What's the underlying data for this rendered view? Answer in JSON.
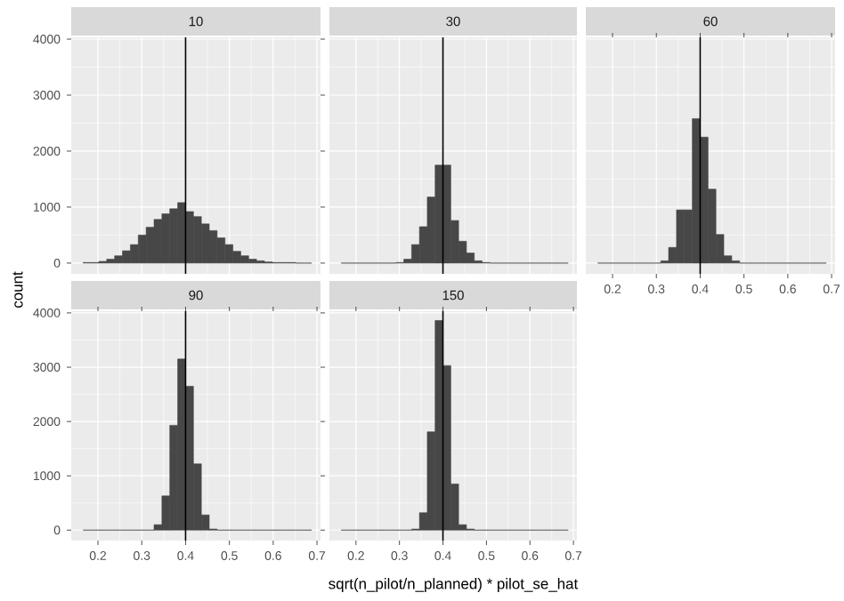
{
  "chart_data": [
    {
      "type": "histogram",
      "title": "10",
      "ylabel": "count",
      "bins": [
        0.166,
        0.184,
        0.202,
        0.22,
        0.238,
        0.256,
        0.274,
        0.292,
        0.31,
        0.328,
        0.346,
        0.364,
        0.382,
        0.4,
        0.418,
        0.436,
        0.454,
        0.472,
        0.49,
        0.508,
        0.526,
        0.544,
        0.562,
        0.58,
        0.598,
        0.616,
        0.634,
        0.652,
        0.67,
        0.688
      ],
      "values": [
        10,
        10,
        30,
        70,
        130,
        220,
        330,
        500,
        640,
        780,
        880,
        970,
        1080,
        920,
        830,
        700,
        580,
        450,
        330,
        210,
        130,
        70,
        40,
        20,
        10,
        10,
        10,
        0,
        0
      ],
      "color": "#474747",
      "xlim": [
        0.139,
        0.708
      ],
      "ylim": [
        -192,
        4032
      ],
      "xticks": [
        0.2,
        0.3,
        0.4,
        0.5,
        0.6,
        0.7
      ],
      "yticks": [
        0,
        1000,
        2000,
        3000,
        4000
      ],
      "tick_labels": "y",
      "grid": true,
      "ref_lines": [
        {
          "axis": "x",
          "value": 0.4,
          "color": "#000000"
        }
      ]
    },
    {
      "type": "histogram",
      "title": "30",
      "bins": [
        0.166,
        0.184,
        0.202,
        0.22,
        0.238,
        0.256,
        0.274,
        0.292,
        0.31,
        0.328,
        0.346,
        0.364,
        0.382,
        0.4,
        0.418,
        0.436,
        0.454,
        0.472,
        0.49,
        0.508,
        0.526,
        0.544,
        0.562,
        0.58,
        0.598,
        0.616,
        0.634,
        0.652,
        0.67,
        0.688
      ],
      "values": [
        0,
        0,
        0,
        0,
        0,
        0,
        0,
        10,
        70,
        330,
        650,
        1180,
        1750,
        1750,
        760,
        390,
        180,
        40,
        10,
        0,
        0,
        0,
        0,
        0,
        0,
        0,
        0,
        0,
        0
      ],
      "color": "#474747",
      "xlim": [
        0.139,
        0.708
      ],
      "ylim": [
        -192,
        4032
      ],
      "xticks": [
        0.2,
        0.3,
        0.4,
        0.5,
        0.6,
        0.7
      ],
      "yticks": [
        0,
        1000,
        2000,
        3000,
        4000
      ],
      "tick_labels": false,
      "grid": true,
      "ref_lines": [
        {
          "axis": "x",
          "value": 0.4,
          "color": "#000000"
        }
      ]
    },
    {
      "type": "histogram",
      "title": "60",
      "bins": [
        0.166,
        0.184,
        0.202,
        0.22,
        0.238,
        0.256,
        0.274,
        0.292,
        0.31,
        0.328,
        0.346,
        0.364,
        0.382,
        0.4,
        0.418,
        0.436,
        0.454,
        0.472,
        0.49,
        0.508,
        0.526,
        0.544,
        0.562,
        0.58,
        0.598,
        0.616,
        0.634,
        0.652,
        0.67,
        0.688
      ],
      "values": [
        0,
        0,
        0,
        0,
        0,
        0,
        0,
        0,
        40,
        280,
        950,
        950,
        2580,
        2250,
        1320,
        510,
        130,
        40,
        0,
        0,
        0,
        0,
        0,
        0,
        0,
        0,
        0,
        0,
        0
      ],
      "color": "#474747",
      "xlim": [
        0.139,
        0.708
      ],
      "ylim": [
        -192,
        4032
      ],
      "xticks": [
        0.2,
        0.3,
        0.4,
        0.5,
        0.6,
        0.7
      ],
      "yticks": [
        0,
        1000,
        2000,
        3000,
        4000
      ],
      "tick_labels": "x",
      "grid": true,
      "ref_lines": [
        {
          "axis": "x",
          "value": 0.4,
          "color": "#000000"
        }
      ]
    },
    {
      "type": "histogram",
      "title": "90",
      "bins": [
        0.166,
        0.184,
        0.202,
        0.22,
        0.238,
        0.256,
        0.274,
        0.292,
        0.31,
        0.328,
        0.346,
        0.364,
        0.382,
        0.4,
        0.418,
        0.436,
        0.454,
        0.472,
        0.49,
        0.508,
        0.526,
        0.544,
        0.562,
        0.58,
        0.598,
        0.616,
        0.634,
        0.652,
        0.67,
        0.688
      ],
      "values": [
        0,
        0,
        0,
        0,
        0,
        0,
        0,
        0,
        0,
        100,
        630,
        1930,
        3150,
        2650,
        1220,
        280,
        20,
        0,
        0,
        0,
        0,
        0,
        0,
        0,
        0,
        0,
        0,
        0,
        0
      ],
      "color": "#474747",
      "xlim": [
        0.139,
        0.708
      ],
      "ylim": [
        -192,
        4032
      ],
      "xticks": [
        0.2,
        0.3,
        0.4,
        0.5,
        0.6,
        0.7
      ],
      "yticks": [
        0,
        1000,
        2000,
        3000,
        4000
      ],
      "grid": true,
      "ref_lines": [
        {
          "axis": "x",
          "value": 0.4,
          "color": "#000000"
        }
      ]
    },
    {
      "type": "histogram",
      "title": "150",
      "xlabel": "sqrt(n_pilot/n_planned) * pilot_se_hat",
      "bins": [
        0.166,
        0.184,
        0.202,
        0.22,
        0.238,
        0.256,
        0.274,
        0.292,
        0.31,
        0.328,
        0.346,
        0.364,
        0.382,
        0.4,
        0.418,
        0.436,
        0.454,
        0.472,
        0.49,
        0.508,
        0.526,
        0.544,
        0.562,
        0.58,
        0.598,
        0.616,
        0.634,
        0.652,
        0.67,
        0.688
      ],
      "values": [
        0,
        0,
        0,
        0,
        0,
        0,
        0,
        0,
        0,
        20,
        320,
        1810,
        3860,
        3030,
        850,
        100,
        20,
        0,
        0,
        0,
        0,
        0,
        0,
        0,
        0,
        0,
        0,
        0,
        0
      ],
      "color": "#474747",
      "xlim": [
        0.139,
        0.708
      ],
      "ylim": [
        -192,
        4032
      ],
      "xticks": [
        0.2,
        0.3,
        0.4,
        0.5,
        0.6,
        0.7
      ],
      "yticks": [
        0,
        1000,
        2000,
        3000,
        4000
      ],
      "tick_labels": "x",
      "grid": true,
      "ref_lines": [
        {
          "axis": "x",
          "value": 0.4,
          "color": "#000000"
        }
      ]
    }
  ]
}
